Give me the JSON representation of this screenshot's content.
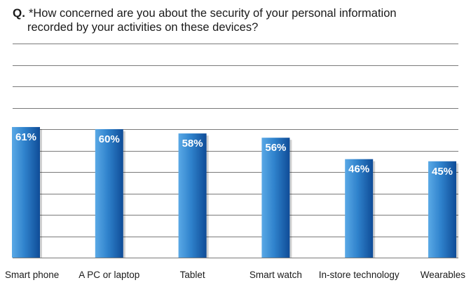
{
  "question": {
    "prefix": "Q.",
    "line1": "*How concerned are you about the security of your personal information",
    "line2": "recorded by your activities on these devices?"
  },
  "chart_data": {
    "type": "bar",
    "categories": [
      "Smart phone",
      "A PC or laptop",
      "Tablet",
      "Smart watch",
      "In-store technology",
      "Wearables"
    ],
    "values": [
      61,
      60,
      58,
      56,
      46,
      45
    ],
    "value_labels": [
      "61%",
      "60%",
      "58%",
      "56%",
      "46%",
      "45%"
    ],
    "ylim": [
      0,
      100
    ],
    "grid": true,
    "bar_color_light": "#5aa9e6",
    "bar_color_dark": "#0f4c97"
  }
}
